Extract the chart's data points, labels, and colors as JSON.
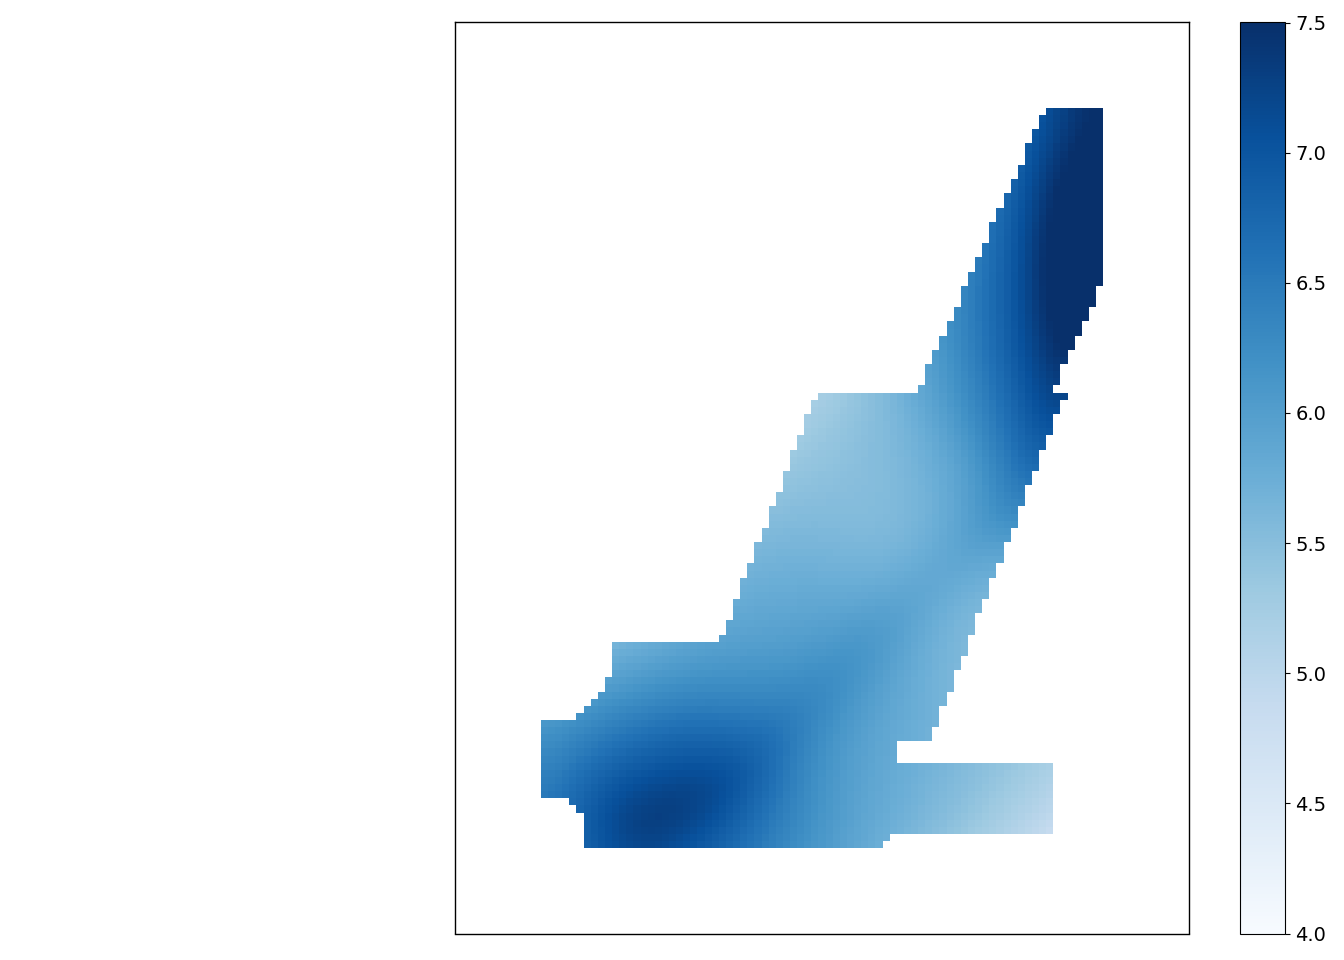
{
  "vmin": 4.0,
  "vmax": 7.5,
  "colorbar_ticks": [
    4.0,
    4.5,
    5.0,
    5.5,
    6.0,
    6.5,
    7.0,
    7.5
  ],
  "colormap": "Blues",
  "fig_width": 13.44,
  "fig_height": 9.6,
  "dpi": 100,
  "grid_res": 40,
  "smooth_sigma": 2.5
}
